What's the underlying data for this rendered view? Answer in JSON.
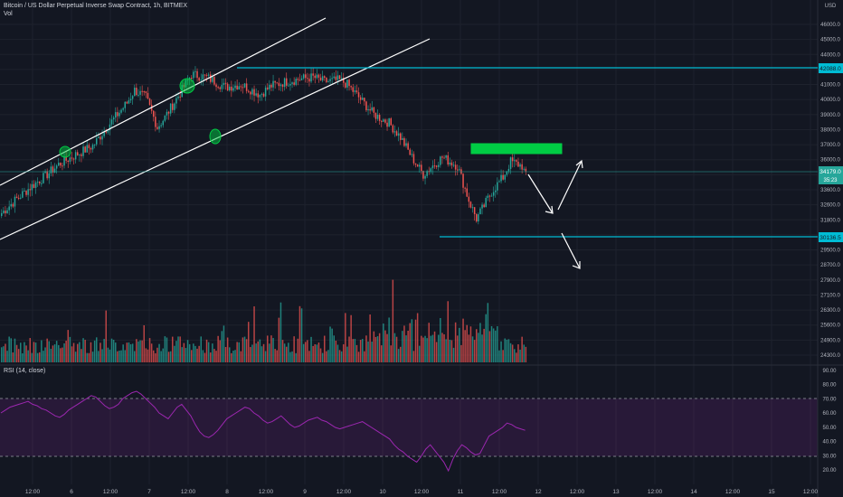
{
  "header": {
    "title": "Bitcoin / US Dollar Perpetual Inverse Swap Contract, 1h, BITMEX",
    "vol_label": "Vol",
    "rsi_label": "RSI (14, close)",
    "currency": "USD"
  },
  "price_axis": {
    "ticks": [
      "46000.0",
      "45000.0",
      "44000.0",
      "42000.0",
      "41000.0",
      "40000.0",
      "39000.0",
      "38000.0",
      "37000.0",
      "36000.0",
      "35000.0",
      "33600.0",
      "32600.0",
      "31800.0",
      "31000.0",
      "29500.0",
      "28700.0",
      "27900.0",
      "27100.0",
      "26300.0",
      "25600.0",
      "24900.0",
      "24300.0"
    ],
    "badges": {
      "resistance": "42088.0",
      "current": "34179.0",
      "countdown": "35:23",
      "support": "30136.5"
    }
  },
  "rsi_axis": {
    "ticks": [
      "90.00",
      "80.00",
      "70.00",
      "60.00",
      "50.00",
      "40.00",
      "30.00",
      "20.00"
    ]
  },
  "time_axis": {
    "labels": [
      "12:00",
      "6",
      "12:00",
      "7",
      "12:00",
      "8",
      "12:00",
      "9",
      "12:00",
      "10",
      "12:00",
      "11",
      "12:00",
      "12",
      "12:00",
      "13",
      "12:00",
      "14",
      "12:00",
      "15",
      "12:00"
    ]
  },
  "colors": {
    "up": "#26a69a",
    "down": "#ef5350",
    "level": "#00bcd4",
    "rsi": "#9c27b0",
    "zone": "#00cc44",
    "background": "#131722"
  },
  "chart_data": {
    "type": "candlestick",
    "interval": "1h",
    "x_dates": [
      "2021-05-05 21:00",
      "2021-05-11 17:00"
    ],
    "x_labels": [
      "12:00",
      "6",
      "12:00",
      "7",
      "12:00",
      "8",
      "12:00",
      "9",
      "12:00",
      "10",
      "12:00",
      "11",
      "12:00",
      "12",
      "12:00",
      "13",
      "12:00",
      "14",
      "12:00",
      "15",
      "12:00"
    ],
    "price_anchors": [
      [
        0,
        31900
      ],
      [
        8,
        32900
      ],
      [
        16,
        33800
      ],
      [
        24,
        34600
      ],
      [
        30,
        35300
      ],
      [
        38,
        35900
      ],
      [
        48,
        36600
      ],
      [
        56,
        38000
      ],
      [
        66,
        39600
      ],
      [
        70,
        40500
      ],
      [
        76,
        40000
      ],
      [
        82,
        37900
      ],
      [
        86,
        38600
      ],
      [
        94,
        40300
      ],
      [
        100,
        41600
      ],
      [
        108,
        41400
      ],
      [
        118,
        40700
      ],
      [
        126,
        40900
      ],
      [
        136,
        40200
      ],
      [
        142,
        40800
      ],
      [
        150,
        41100
      ],
      [
        158,
        41300
      ],
      [
        164,
        41400
      ],
      [
        170,
        41100
      ],
      [
        178,
        41200
      ],
      [
        182,
        40900
      ],
      [
        188,
        40000
      ],
      [
        196,
        38800
      ],
      [
        204,
        38200
      ],
      [
        210,
        37200
      ],
      [
        216,
        35800
      ],
      [
        222,
        34600
      ],
      [
        226,
        35100
      ],
      [
        232,
        35800
      ],
      [
        240,
        35200
      ],
      [
        246,
        32800
      ],
      [
        250,
        31500
      ],
      [
        254,
        32400
      ],
      [
        258,
        33400
      ],
      [
        264,
        34400
      ],
      [
        268,
        35500
      ],
      [
        274,
        35200
      ],
      [
        276,
        34500
      ]
    ],
    "volume_range": [
      0,
      6000
    ],
    "rsi_values": [
      60,
      62,
      64,
      65,
      66,
      67,
      68,
      66,
      65,
      63,
      62,
      60,
      58,
      57,
      59,
      62,
      64,
      66,
      68,
      70,
      72,
      71,
      68,
      65,
      63,
      64,
      66,
      70,
      72,
      74,
      75,
      73,
      70,
      67,
      64,
      60,
      58,
      56,
      60,
      64,
      66,
      62,
      58,
      52,
      47,
      44,
      43,
      45,
      48,
      52,
      56,
      58,
      60,
      62,
      64,
      63,
      60,
      58,
      55,
      53,
      54,
      56,
      58,
      55,
      52,
      50,
      51,
      53,
      55,
      56,
      57,
      55,
      54,
      52,
      50,
      49,
      50,
      51,
      52,
      53,
      54,
      52,
      50,
      48,
      46,
      44,
      42,
      38,
      35,
      33,
      30,
      28,
      26,
      30,
      35,
      38,
      34,
      30,
      26,
      20,
      28,
      34,
      38,
      36,
      33,
      31,
      32,
      38,
      44,
      46,
      48,
      50,
      53,
      52,
      50,
      49,
      48
    ],
    "rsi_ylim": [
      15,
      95
    ],
    "levels": {
      "resistance": 42088.0,
      "support": 30136.5
    }
  }
}
